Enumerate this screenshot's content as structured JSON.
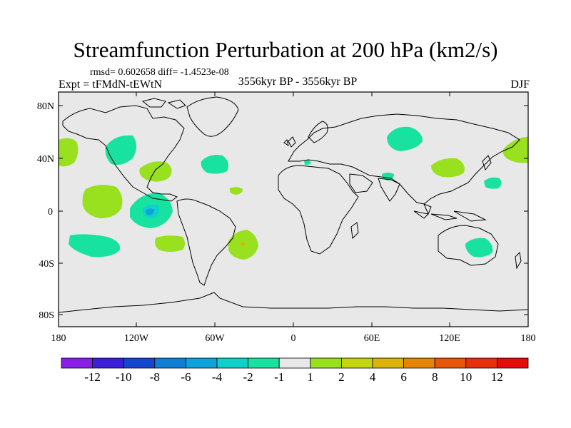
{
  "title": "Streamfunction Perturbation at 200 hPa (km2/s)",
  "stats": "rmsd= 0.602658 diff= -1.4523e-08",
  "experiment": "Expt = tFMdN-tEWtN",
  "period": "3556kyr BP - 3556kyr BP",
  "season": "DJF",
  "lat_ticks": [
    "80N",
    "40N",
    "0",
    "40S",
    "80S"
  ],
  "lon_ticks": [
    "180",
    "120W",
    "60W",
    "0",
    "60E",
    "120E",
    "180"
  ],
  "colorbar": {
    "labels": [
      "-12",
      "-10",
      "-8",
      "-6",
      "-4",
      "-2",
      "-1",
      "1",
      "2",
      "4",
      "6",
      "8",
      "10",
      "12"
    ],
    "colors": [
      "#8a1ee6",
      "#3b1fd9",
      "#1446cf",
      "#0d7fd6",
      "#0ea2dc",
      "#0ed1c9",
      "#17e2a0",
      "#e8e8e8",
      "#99e01e",
      "#c3d50f",
      "#dcb30a",
      "#e68408",
      "#e65708",
      "#e8300a",
      "#e60b0b"
    ]
  },
  "colors": {
    "background": "#e8e8e8",
    "pos1": "#99e01e",
    "neg1": "#17e2a0",
    "neg2": "#0ed1c9",
    "neg4": "#0ea2dc",
    "pos4": "#dcb30a"
  }
}
